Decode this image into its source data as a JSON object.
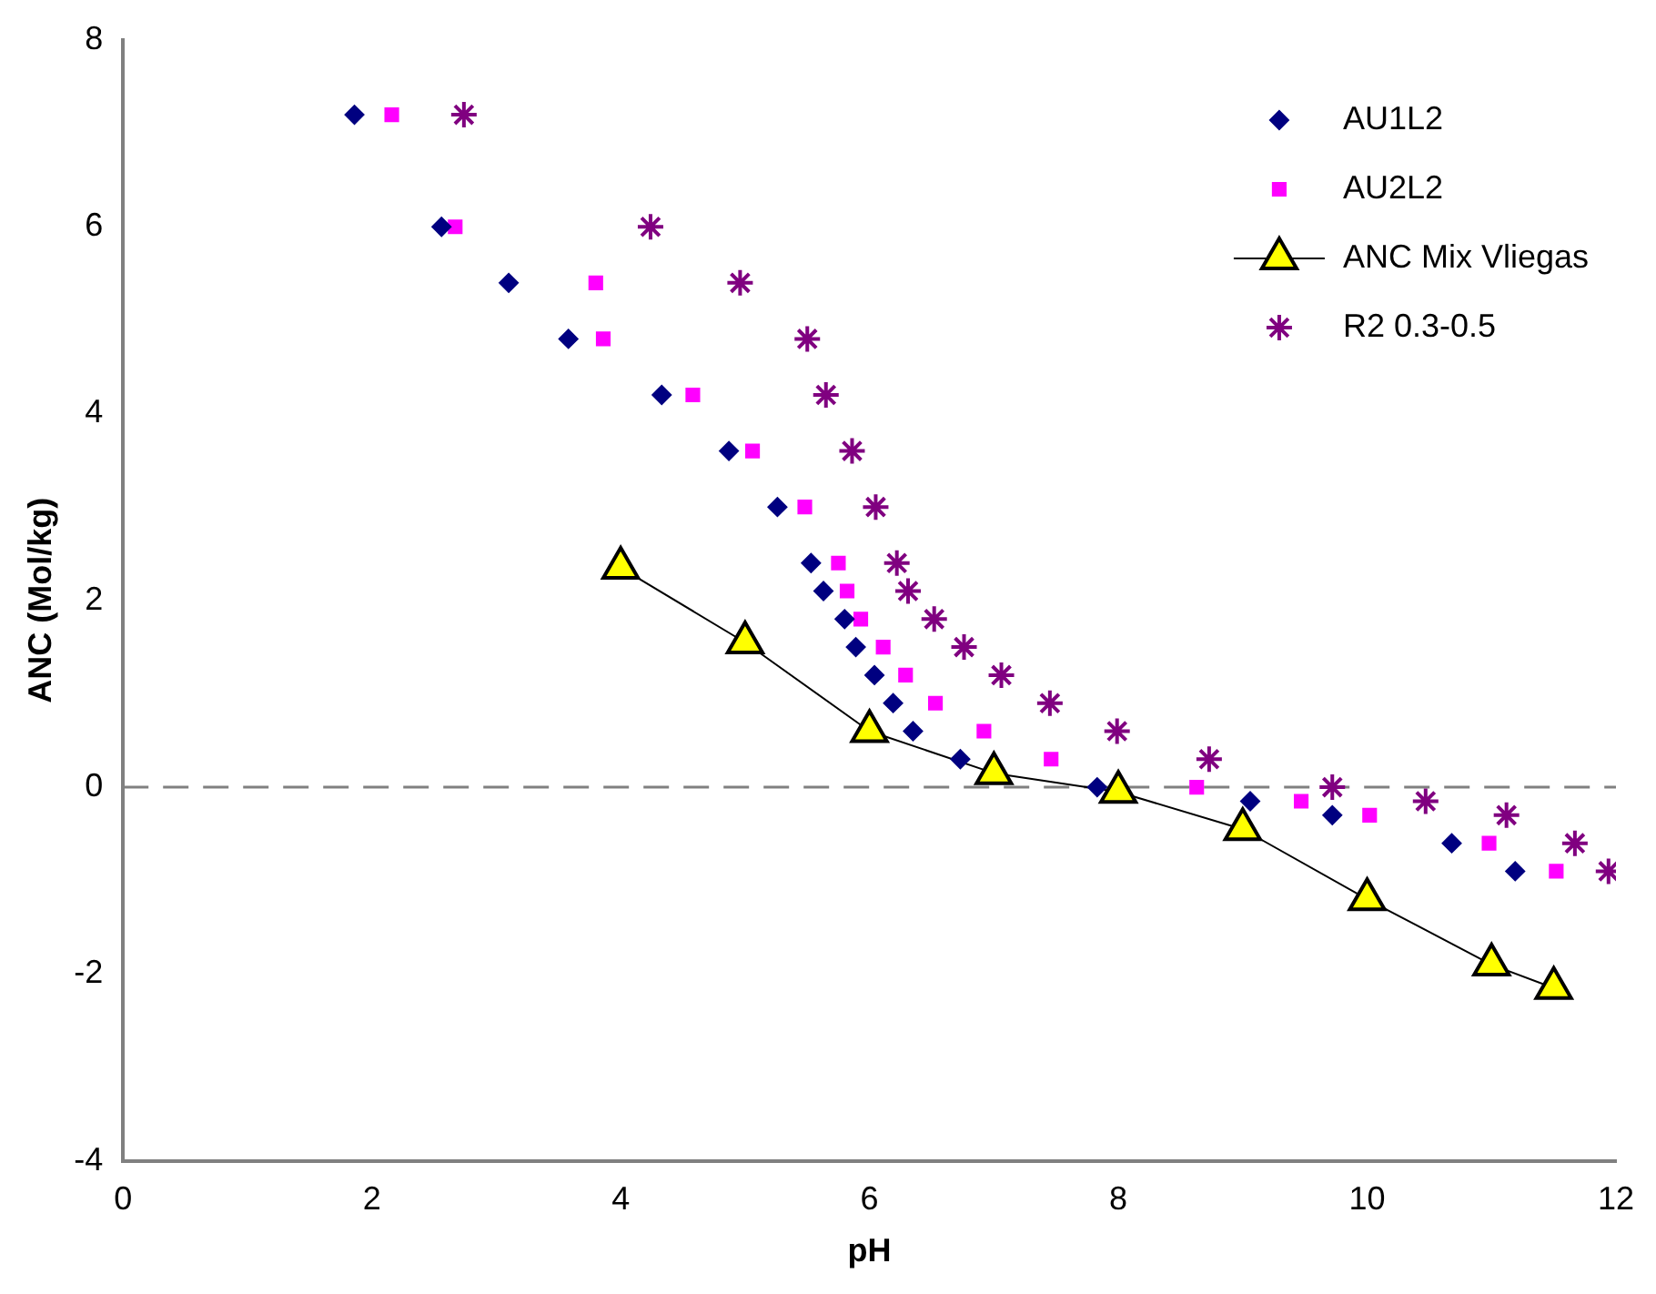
{
  "chart_data": {
    "type": "scatter",
    "xlabel": "pH",
    "ylabel": "ANC (Mol/kg)",
    "xlim": [
      0,
      12
    ],
    "xticks": [
      0,
      2,
      4,
      6,
      8,
      10,
      12
    ],
    "ylim": [
      -4,
      8
    ],
    "yticks": [
      -4,
      -2,
      0,
      2,
      4,
      6,
      8
    ],
    "grid": false,
    "legend": "top right",
    "ref_lines": [
      {
        "axis": "y",
        "value": 0,
        "color": "#808080",
        "line_style": "dashed"
      }
    ],
    "series": [
      {
        "name": "AU1L2",
        "color": "#000080",
        "marker": "diamond",
        "x": [
          1.86,
          2.56,
          3.1,
          3.58,
          4.33,
          4.87,
          5.26,
          5.53,
          5.63,
          5.8,
          5.89,
          6.04,
          6.19,
          6.35,
          6.73,
          7.83,
          9.06,
          9.72,
          10.68,
          11.19
        ],
        "values": [
          7.2,
          6.0,
          5.4,
          4.8,
          4.2,
          3.6,
          3.0,
          2.4,
          2.1,
          1.8,
          1.5,
          1.2,
          0.9,
          0.6,
          0.3,
          0.0,
          -0.15,
          -0.3,
          -0.6,
          -0.9
        ]
      },
      {
        "name": "AU2L2",
        "color": "#ff00ff",
        "marker": "square",
        "x": [
          2.16,
          2.67,
          3.8,
          3.86,
          4.58,
          5.06,
          5.48,
          5.75,
          5.82,
          5.93,
          6.11,
          6.29,
          6.53,
          6.92,
          7.46,
          8.63,
          9.47,
          10.02,
          10.98,
          11.52
        ],
        "values": [
          7.2,
          6.0,
          5.4,
          4.8,
          4.2,
          3.6,
          3.0,
          2.4,
          2.1,
          1.8,
          1.5,
          1.2,
          0.9,
          0.6,
          0.3,
          0.0,
          -0.15,
          -0.3,
          -0.6,
          -0.9
        ]
      },
      {
        "name": "ANC Mix Vliegas",
        "type": "line",
        "color": "#ffff00",
        "marker": "triangle",
        "line_style": "solid",
        "x": [
          4,
          5,
          6,
          7,
          8,
          9,
          10,
          11,
          11.5
        ],
        "values": [
          2.35,
          1.55,
          0.6,
          0.15,
          -0.05,
          -0.45,
          -1.2,
          -1.9,
          -2.15
        ]
      },
      {
        "name": "R2 0.3-0.5",
        "color": "#800080",
        "marker": "cross",
        "x": [
          2.74,
          4.24,
          4.96,
          5.5,
          5.65,
          5.86,
          6.05,
          6.22,
          6.31,
          6.52,
          6.76,
          7.06,
          7.45,
          7.99,
          8.73,
          9.72,
          10.47,
          11.12,
          11.67,
          11.94
        ],
        "values": [
          7.2,
          6.0,
          5.4,
          4.8,
          4.2,
          3.6,
          3.0,
          2.4,
          2.1,
          1.8,
          1.5,
          1.2,
          0.9,
          0.6,
          0.3,
          0.0,
          -0.15,
          -0.3,
          -0.6,
          -0.9
        ]
      }
    ]
  }
}
